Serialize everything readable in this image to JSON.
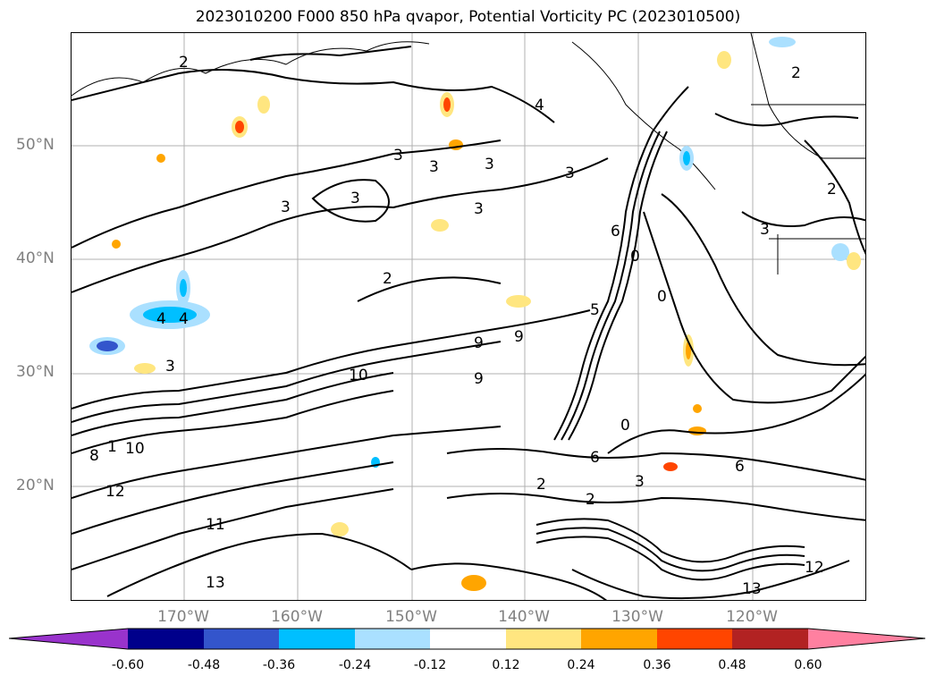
{
  "title": "2023010200 F000 850 hPa qvapor, Potential Vorticity PC (2023010500)",
  "lat_labels": [
    "50°N",
    "40°N",
    "30°N",
    "20°N"
  ],
  "lon_labels": [
    "170°W",
    "160°W",
    "150°W",
    "140°W",
    "130°W",
    "120°W"
  ],
  "colorbar": {
    "ticks": [
      "-0.60",
      "-0.48",
      "-0.36",
      "-0.24",
      "-0.12",
      "0.12",
      "0.24",
      "0.36",
      "0.48",
      "0.60"
    ],
    "colors": [
      "#9933cc",
      "#00008b",
      "#3355cc",
      "#00bfff",
      "#aae0ff",
      "#ffffff",
      "#ffe680",
      "#ffa500",
      "#ff4500",
      "#b22222",
      "#ff80a0"
    ]
  },
  "contour_labels": [
    "3",
    "3",
    "3",
    "3",
    "3",
    "3",
    "3",
    "2",
    "2",
    "2",
    "2",
    "4",
    "4",
    "4",
    "5",
    "6",
    "6",
    "0",
    "0",
    "0",
    "9",
    "9",
    "9",
    "10",
    "10",
    "12",
    "12",
    "13",
    "13",
    "11",
    "8",
    "3",
    "1",
    "2",
    "3",
    "6",
    "2",
    "3"
  ]
}
